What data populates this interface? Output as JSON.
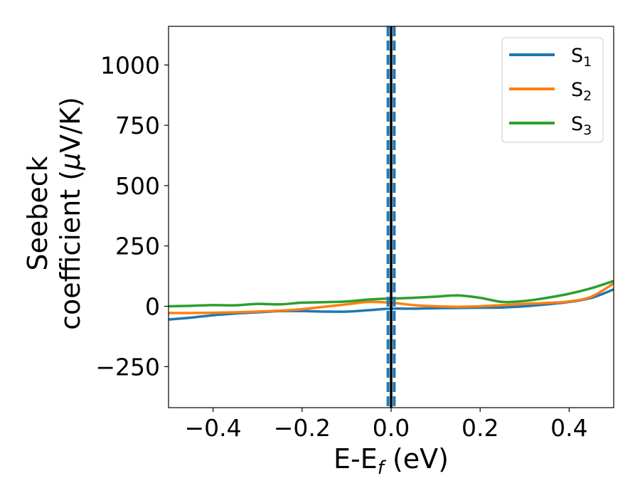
{
  "chart_data": {
    "type": "line",
    "xlabel": {
      "main": "E-E",
      "sub": "f",
      "tail": " (eV)"
    },
    "ylabel": {
      "line1": "Seebeck",
      "line2_main": "coefficient  (",
      "line2_mu": "μ",
      "line2_tail": "V/K)"
    },
    "xlim": [
      -0.5,
      0.5
    ],
    "ylim": [
      -420,
      1160
    ],
    "xticks": [
      -0.4,
      -0.2,
      0.0,
      0.2,
      0.4
    ],
    "xtick_labels": [
      "−0.4",
      "−0.2",
      "0.0",
      "0.2",
      "0.4"
    ],
    "yticks": [
      -250,
      0,
      250,
      500,
      750,
      1000
    ],
    "ytick_labels": [
      "−250",
      "0",
      "250",
      "500",
      "750",
      "1000"
    ],
    "grid": false,
    "legend_position": "top-right",
    "series": [
      {
        "name": "S1",
        "label_main": "S",
        "label_sub": "1",
        "color": "#1f77b4",
        "x": [
          -0.5,
          -0.45,
          -0.4,
          -0.35,
          -0.3,
          -0.25,
          -0.2,
          -0.15,
          -0.1,
          -0.05,
          0.0,
          0.05,
          0.1,
          0.15,
          0.2,
          0.25,
          0.3,
          0.35,
          0.4,
          0.45,
          0.5
        ],
        "y": [
          -55,
          -47,
          -37,
          -30,
          -25,
          -20,
          -20,
          -22,
          -22,
          -16,
          -10,
          -10,
          -8,
          -7,
          -6,
          -5,
          0,
          8,
          18,
          35,
          70
        ]
      },
      {
        "name": "S2",
        "label_main": "S",
        "label_sub": "2",
        "color": "#ff7f0e",
        "x": [
          -0.5,
          -0.45,
          -0.4,
          -0.35,
          -0.3,
          -0.25,
          -0.2,
          -0.15,
          -0.1,
          -0.05,
          0.0,
          0.05,
          0.1,
          0.15,
          0.2,
          0.25,
          0.3,
          0.35,
          0.4,
          0.45,
          0.5
        ],
        "y": [
          -28,
          -28,
          -27,
          -25,
          -22,
          -18,
          -12,
          -2,
          8,
          18,
          15,
          5,
          0,
          -2,
          0,
          5,
          10,
          14,
          20,
          40,
          95
        ]
      },
      {
        "name": "S3",
        "label_main": "S",
        "label_sub": "3",
        "color": "#2ca02c",
        "x": [
          -0.5,
          -0.45,
          -0.4,
          -0.35,
          -0.3,
          -0.25,
          -0.2,
          -0.15,
          -0.1,
          -0.05,
          0.0,
          0.05,
          0.1,
          0.15,
          0.2,
          0.25,
          0.3,
          0.35,
          0.4,
          0.45,
          0.5
        ],
        "y": [
          0,
          2,
          5,
          4,
          10,
          8,
          15,
          17,
          20,
          28,
          32,
          35,
          40,
          45,
          35,
          18,
          22,
          35,
          52,
          75,
          105
        ]
      }
    ],
    "vlines": [
      {
        "x": 0.0,
        "style": "solid",
        "color": "#000000"
      },
      {
        "x": -0.007,
        "style": "dashed",
        "color": "#1f77b4"
      },
      {
        "x": 0.007,
        "style": "dashed",
        "color": "#1f77b4"
      }
    ]
  }
}
